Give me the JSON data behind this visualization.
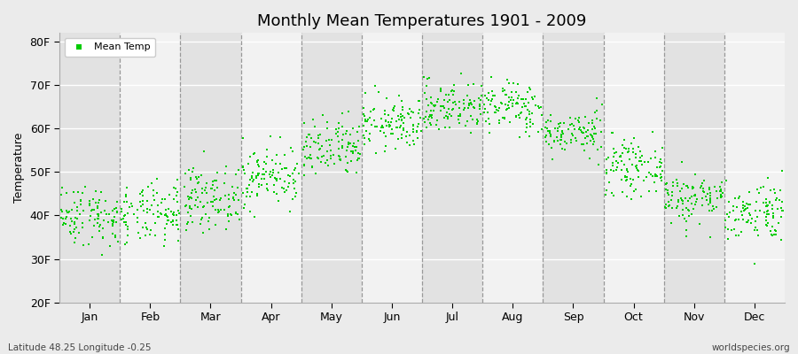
{
  "title": "Monthly Mean Temperatures 1901 - 2009",
  "ylabel": "Temperature",
  "xlabel_months": [
    "Jan",
    "Feb",
    "Mar",
    "Apr",
    "May",
    "Jun",
    "Jul",
    "Aug",
    "Sep",
    "Oct",
    "Nov",
    "Dec"
  ],
  "ytick_labels": [
    "20F",
    "30F",
    "40F",
    "50F",
    "60F",
    "70F",
    "80F"
  ],
  "ytick_values": [
    20,
    30,
    40,
    50,
    60,
    70,
    80
  ],
  "ylim": [
    20,
    82
  ],
  "background_color": "#ebebeb",
  "band_colors": [
    "#e2e2e2",
    "#f2f2f2"
  ],
  "dot_color": "#00cc00",
  "dot_size": 3.5,
  "subtitle_left": "Latitude 48.25 Longitude -0.25",
  "subtitle_right": "worldspecies.org",
  "legend_label": "Mean Temp",
  "monthly_means_F": [
    40,
    40,
    44,
    49,
    55,
    61,
    65,
    65,
    59,
    51,
    44,
    41
  ],
  "monthly_std_F": [
    3.5,
    3.5,
    3.5,
    3.5,
    3.5,
    3.0,
    3.0,
    3.0,
    2.5,
    3.0,
    3.0,
    3.5
  ],
  "n_years": 109,
  "seed": 42
}
